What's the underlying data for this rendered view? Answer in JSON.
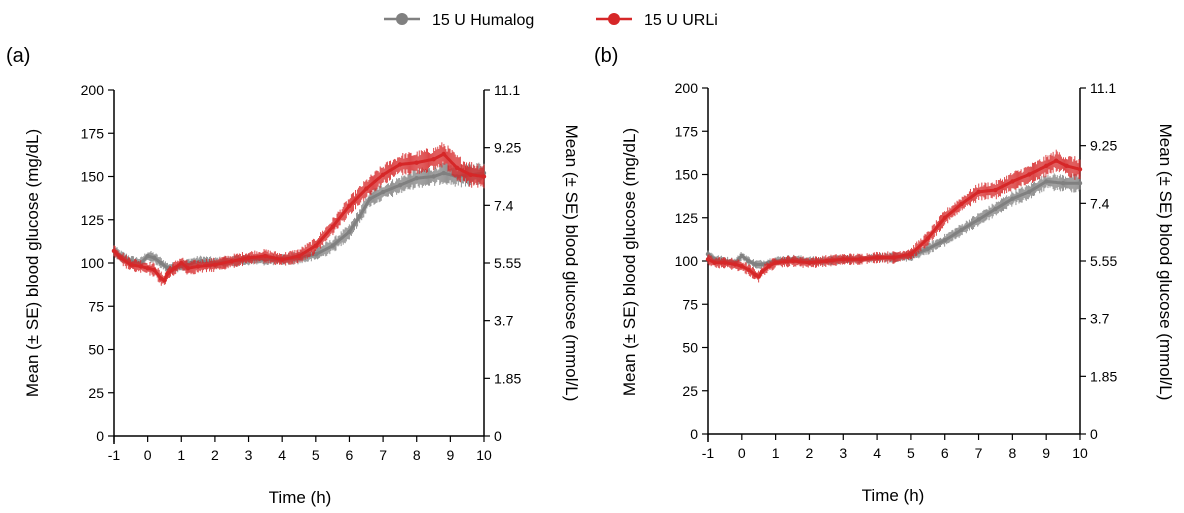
{
  "legend": [
    {
      "label": "15 U Humalog",
      "color": "#808080"
    },
    {
      "label": "15 U URLi",
      "color": "#d62728"
    }
  ],
  "chart_data": [
    {
      "type": "line",
      "panel": "(a)",
      "xlabel": "Time (h)",
      "ylabel": "Mean (± SE) blood glucose (mg/dL)",
      "y2label": "Mean (± SE) blood glucose (mmol/L)",
      "xlim": [
        -1,
        10
      ],
      "ylim": [
        0,
        200
      ],
      "xticks": [
        "-1",
        "0",
        "1",
        "2",
        "3",
        "4",
        "5",
        "6",
        "7",
        "8",
        "9",
        "10"
      ],
      "yticks": [
        "0",
        "25",
        "50",
        "75",
        "100",
        "125",
        "150",
        "175",
        "200"
      ],
      "y2ticks": [
        "0",
        "1.85",
        "3.7",
        "5.55",
        "7.4",
        "9.25",
        "11.1"
      ],
      "series": [
        {
          "name": "15 U Humalog",
          "color": "#808080",
          "x": [
            -1,
            -0.8,
            -0.5,
            -0.2,
            0,
            0.2,
            0.4,
            0.6,
            0.8,
            1,
            1.3,
            1.6,
            2,
            2.5,
            3,
            3.5,
            4,
            4.5,
            5,
            5.5,
            6,
            6.3,
            6.6,
            7,
            7.5,
            8,
            8.5,
            8.8,
            9.2,
            9.6,
            10
          ],
          "y": [
            107,
            104,
            101,
            100,
            104,
            103,
            100,
            97,
            97,
            98,
            100,
            101,
            100,
            101,
            102,
            102,
            102,
            103,
            105,
            110,
            118,
            127,
            137,
            141,
            145,
            149,
            150,
            152,
            150,
            151,
            152
          ],
          "se": 5
        },
        {
          "name": "15 U URLi",
          "color": "#d62728",
          "x": [
            -1,
            -0.8,
            -0.5,
            -0.2,
            0,
            0.2,
            0.4,
            0.5,
            0.6,
            0.8,
            1,
            1.2,
            1.5,
            2,
            2.5,
            3,
            3.5,
            4,
            4.5,
            5,
            5.5,
            6,
            6.5,
            7,
            7.5,
            8,
            8.5,
            8.8,
            9.2,
            9.6,
            10
          ],
          "y": [
            107,
            103,
            99,
            98,
            97,
            96,
            91,
            90,
            94,
            97,
            100,
            97,
            98,
            99,
            101,
            103,
            104,
            102,
            104,
            110,
            121,
            133,
            143,
            151,
            157,
            158,
            160,
            163,
            155,
            151,
            150
          ],
          "se": 6
        }
      ]
    },
    {
      "type": "line",
      "panel": "(b)",
      "xlabel": "Time (h)",
      "ylabel": "Mean (± SE) blood glucose (mg/dL)",
      "y2label": "Mean (± SE) blood glucose (mmol/L)",
      "xlim": [
        -1,
        10
      ],
      "ylim": [
        0,
        200
      ],
      "xticks": [
        "-1",
        "0",
        "1",
        "2",
        "3",
        "4",
        "5",
        "6",
        "7",
        "8",
        "9",
        "10"
      ],
      "yticks": [
        "0",
        "25",
        "50",
        "75",
        "100",
        "125",
        "150",
        "175",
        "200"
      ],
      "y2ticks": [
        "0",
        "1.85",
        "3.7",
        "5.55",
        "7.4",
        "9.25",
        "11.1"
      ],
      "series": [
        {
          "name": "15 U Humalog",
          "color": "#808080",
          "x": [
            -1,
            -0.8,
            -0.5,
            -0.2,
            0,
            0.2,
            0.4,
            0.6,
            0.8,
            1,
            1.5,
            2,
            2.5,
            3,
            3.5,
            4,
            4.5,
            5,
            5.5,
            6,
            6.5,
            7,
            7.5,
            8,
            8.5,
            9,
            9.5,
            10
          ],
          "y": [
            104,
            101,
            100,
            99,
            103,
            100,
            98,
            98,
            99,
            100,
            101,
            100,
            100,
            101,
            101,
            102,
            102,
            103,
            107,
            112,
            118,
            124,
            130,
            136,
            140,
            146,
            145,
            145
          ],
          "se": 4
        },
        {
          "name": "15 U URLi",
          "color": "#d62728",
          "x": [
            -1,
            -0.8,
            -0.5,
            -0.2,
            0,
            0.2,
            0.4,
            0.5,
            0.6,
            0.8,
            1,
            1.5,
            2,
            2.5,
            3,
            3.5,
            4,
            4.5,
            5,
            5.5,
            6,
            6.5,
            7,
            7.5,
            8,
            8.5,
            9,
            9.3,
            9.6,
            10
          ],
          "y": [
            101,
            99,
            99,
            98,
            97,
            95,
            92,
            91,
            94,
            97,
            99,
            100,
            99,
            100,
            101,
            101,
            102,
            102,
            104,
            113,
            125,
            133,
            140,
            141,
            146,
            150,
            155,
            158,
            155,
            153
          ],
          "se": 5
        }
      ]
    }
  ]
}
